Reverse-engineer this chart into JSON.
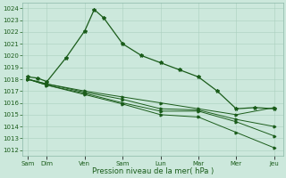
{
  "title": "",
  "xlabel": "Pression niveau de la mer( hPa )",
  "ylabel": "",
  "background_color": "#cce8dc",
  "grid_color": "#aacfbf",
  "line_color": "#1a5c1a",
  "tick_labels": [
    "Sam",
    "Dim",
    "Ven",
    "Sam",
    "Lun",
    "Mar",
    "Mer",
    "Jeu"
  ],
  "tick_positions": [
    0,
    1,
    3,
    5,
    7,
    9,
    11,
    13
  ],
  "ylim": [
    1011.5,
    1024.5
  ],
  "yticks": [
    1012,
    1013,
    1014,
    1015,
    1016,
    1017,
    1018,
    1019,
    1020,
    1021,
    1022,
    1023,
    1024
  ],
  "series1_x": [
    0,
    0.5,
    1,
    2,
    3,
    3.5,
    4,
    5,
    6,
    7,
    8,
    9,
    10,
    11,
    12,
    13
  ],
  "series1_y": [
    1018.2,
    1018.1,
    1017.8,
    1019.8,
    1022.1,
    1023.9,
    1023.2,
    1021.0,
    1020.0,
    1019.4,
    1018.8,
    1018.2,
    1017.0,
    1015.5,
    1015.6,
    1015.5
  ],
  "series2_x": [
    0,
    1,
    3,
    5,
    7,
    9,
    11,
    13
  ],
  "series2_y": [
    1018.0,
    1017.6,
    1017.0,
    1016.5,
    1016.0,
    1015.5,
    1015.0,
    1015.6
  ],
  "series3_x": [
    0,
    1,
    3,
    5,
    7,
    9,
    11,
    13
  ],
  "series3_y": [
    1018.0,
    1017.6,
    1016.9,
    1016.3,
    1015.5,
    1015.4,
    1014.6,
    1014.0
  ],
  "series4_x": [
    0,
    1,
    3,
    5,
    7,
    9,
    11,
    13
  ],
  "series4_y": [
    1018.0,
    1017.5,
    1016.8,
    1016.0,
    1015.3,
    1015.3,
    1014.4,
    1013.2
  ],
  "series5_x": [
    0,
    1,
    3,
    5,
    7,
    9,
    11,
    13
  ],
  "series5_y": [
    1018.0,
    1017.5,
    1016.7,
    1015.9,
    1015.0,
    1014.8,
    1013.5,
    1012.2
  ],
  "xlim": [
    -0.3,
    13.5
  ]
}
